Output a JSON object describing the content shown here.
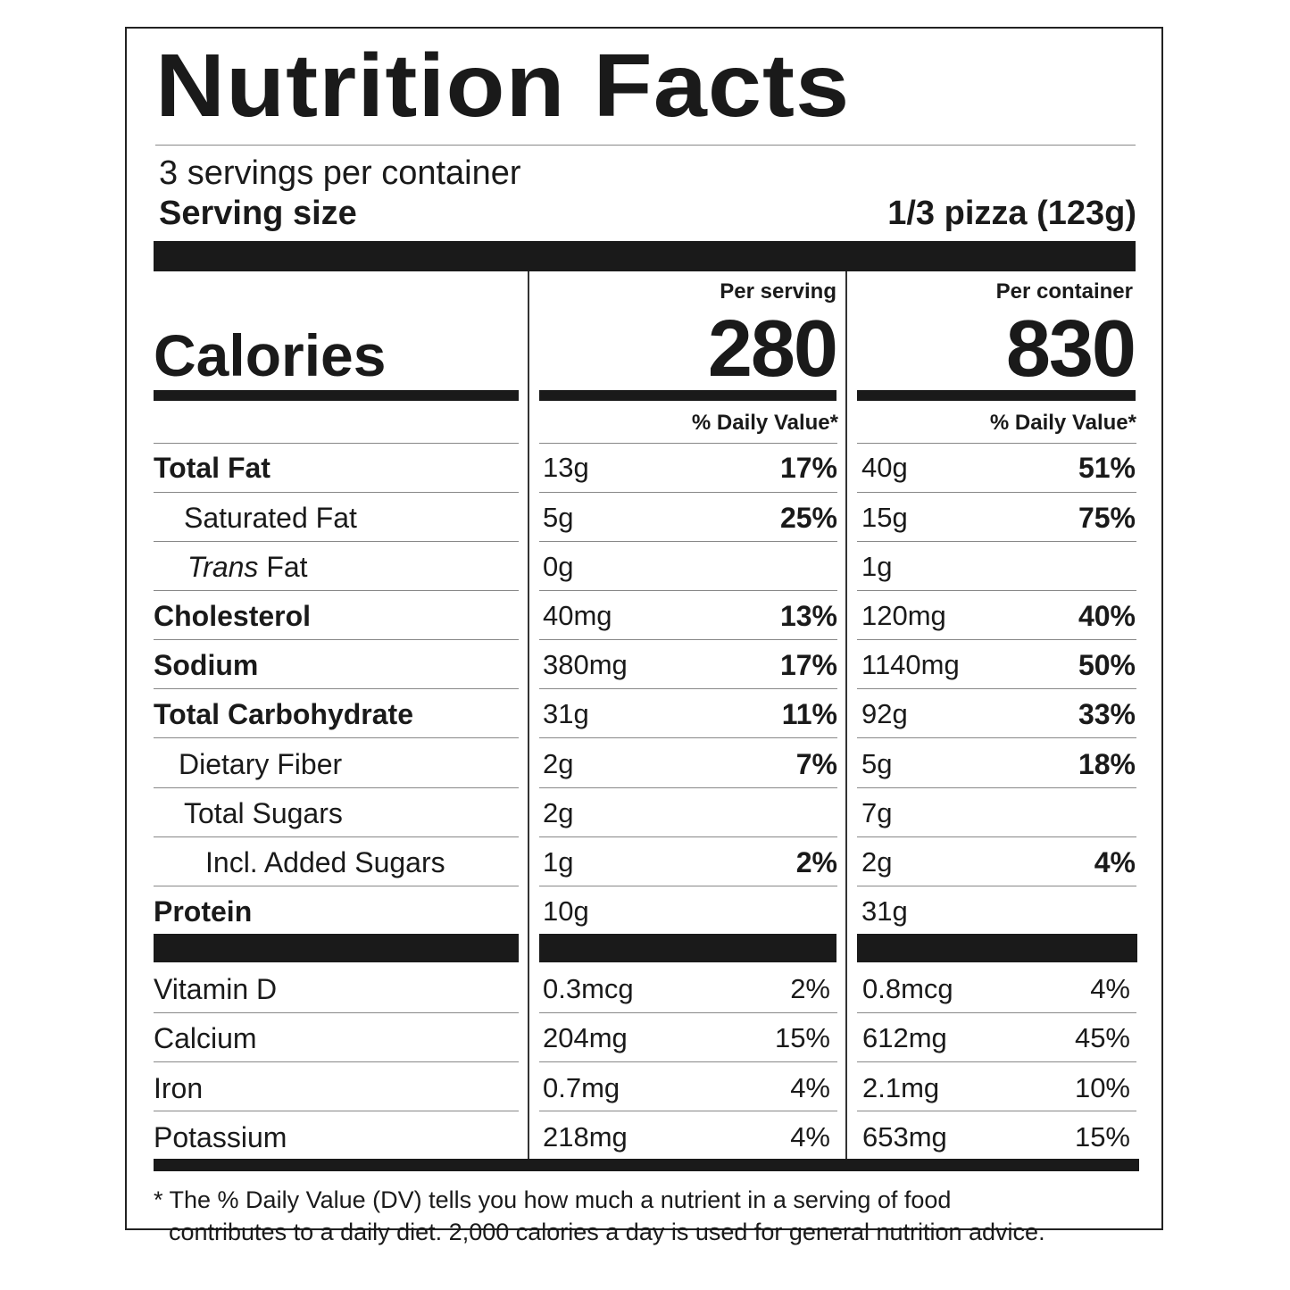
{
  "title": "Nutrition Facts",
  "servings_per_container": "3 servings per container",
  "serving_size_label": "Serving size",
  "serving_size_value": "1/3 pizza (123g)",
  "columns": {
    "per_serving": "Per serving",
    "per_container": "Per container"
  },
  "calories": {
    "label": "Calories",
    "per_serving": "280",
    "per_container": "830"
  },
  "dv_header": "% Daily Value*",
  "nutrients": [
    {
      "label": "Total Fat",
      "serv_amt": "13g",
      "serv_dv": "17%",
      "cont_amt": "40g",
      "cont_dv": "51%"
    },
    {
      "label": "Saturated Fat",
      "serv_amt": "5g",
      "serv_dv": "25%",
      "cont_amt": "15g",
      "cont_dv": "75%"
    },
    {
      "label_italic": "Trans",
      "label_rest": " Fat",
      "serv_amt": "0g",
      "serv_dv": "",
      "cont_amt": "1g",
      "cont_dv": ""
    },
    {
      "label": "Cholesterol",
      "serv_amt": "40mg",
      "serv_dv": "13%",
      "cont_amt": "120mg",
      "cont_dv": "40%"
    },
    {
      "label": "Sodium",
      "serv_amt": "380mg",
      "serv_dv": "17%",
      "cont_amt": "1140mg",
      "cont_dv": "50%"
    },
    {
      "label": "Total Carbohydrate",
      "serv_amt": "31g",
      "serv_dv": "11%",
      "cont_amt": "92g",
      "cont_dv": "33%"
    },
    {
      "label": "Dietary Fiber",
      "serv_amt": "2g",
      "serv_dv": "7%",
      "cont_amt": "5g",
      "cont_dv": "18%"
    },
    {
      "label": "Total Sugars",
      "serv_amt": "2g",
      "serv_dv": "",
      "cont_amt": "7g",
      "cont_dv": ""
    },
    {
      "label": "Incl. Added Sugars",
      "serv_amt": "1g",
      "serv_dv": "2%",
      "cont_amt": "2g",
      "cont_dv": "4%"
    },
    {
      "label": "Protein",
      "serv_amt": "10g",
      "serv_dv": "",
      "cont_amt": "31g",
      "cont_dv": ""
    }
  ],
  "vitamins": [
    {
      "label": "Vitamin D",
      "serv_amt": "0.3mcg",
      "serv_dv": "2%",
      "cont_amt": "0.8mcg",
      "cont_dv": "4%"
    },
    {
      "label": "Calcium",
      "serv_amt": "204mg",
      "serv_dv": "15%",
      "cont_amt": "612mg",
      "cont_dv": "45%"
    },
    {
      "label": "Iron",
      "serv_amt": "0.7mg",
      "serv_dv": "4%",
      "cont_amt": "2.1mg",
      "cont_dv": "10%"
    },
    {
      "label": "Potassium",
      "serv_amt": "218mg",
      "serv_dv": "4%",
      "cont_amt": "653mg",
      "cont_dv": "15%"
    }
  ],
  "footnote_line1": "* The % Daily Value (DV) tells you how much a nutrient in a serving of food",
  "footnote_line2": "contributes to a daily diet. 2,000 calories a day is used for general nutrition advice."
}
